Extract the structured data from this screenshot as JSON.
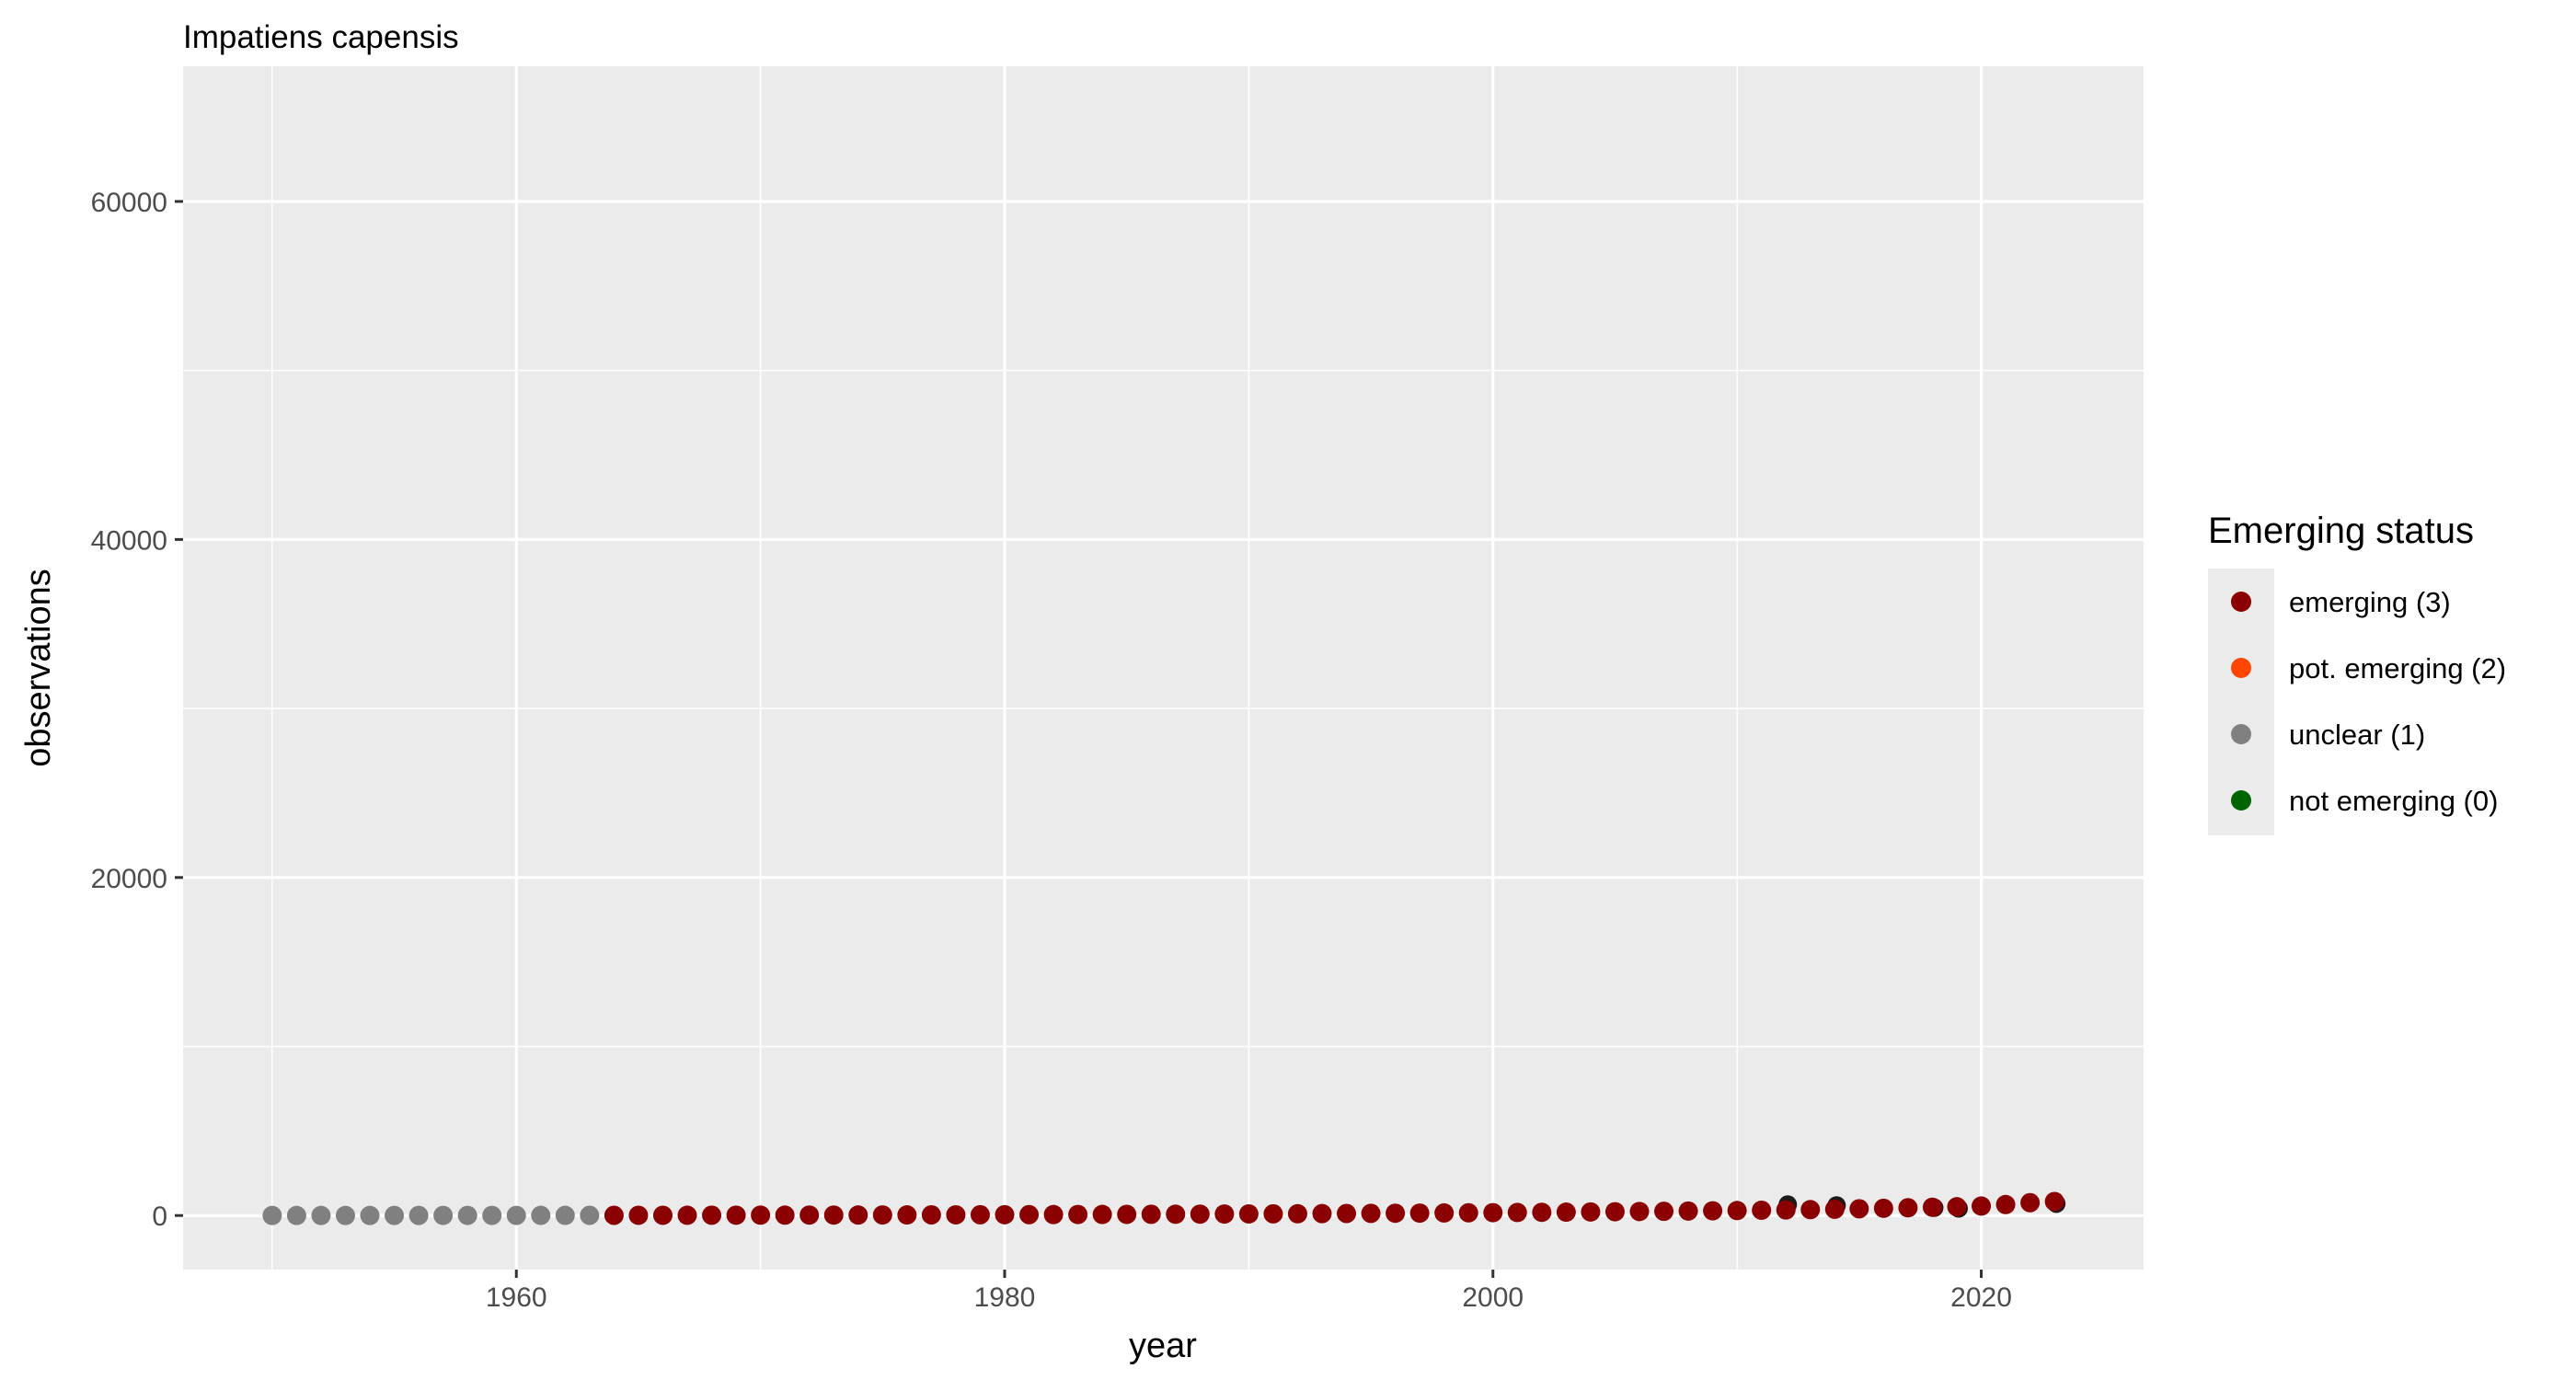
{
  "chart_data": {
    "type": "scatter",
    "title": "Impatiens capensis",
    "xlabel": "year",
    "ylabel": "observations",
    "xlim": [
      1946.35,
      2026.65
    ],
    "ylim": [
      -3200,
      68000
    ],
    "x_ticks": [
      1960,
      1980,
      2000,
      2020
    ],
    "y_ticks": [
      0,
      20000,
      40000,
      60000
    ],
    "grid": true,
    "legend": {
      "title": "Emerging status",
      "placement": "right",
      "entries": [
        {
          "label": "emerging (3)",
          "color": "#8B0000"
        },
        {
          "label": "pot. emerging (2)",
          "color": "#FF4500"
        },
        {
          "label": "unclear (1)",
          "color": "#808080"
        },
        {
          "label": "not emerging (0)",
          "color": "#006400"
        }
      ]
    },
    "series": [
      {
        "status": "unclear (1)",
        "color": "#808080",
        "x": [
          1950,
          1951,
          1952,
          1953,
          1954,
          1955,
          1956,
          1957,
          1958,
          1959,
          1960,
          1961,
          1962,
          1963
        ],
        "y": [
          2,
          3,
          3,
          4,
          4,
          5,
          5,
          6,
          6,
          7,
          8,
          9,
          10,
          11
        ]
      },
      {
        "status": "emerging (3)",
        "color": "#8B0000",
        "x": [
          1964,
          1965,
          1966,
          1967,
          1968,
          1969,
          1970,
          1971,
          1972,
          1973,
          1974,
          1975,
          1976,
          1977,
          1978,
          1979,
          1980,
          1981,
          1982,
          1983,
          1984,
          1985,
          1986,
          1987,
          1988,
          1989,
          1990,
          1991,
          1992,
          1993,
          1994,
          1995,
          1996,
          1997,
          1998,
          1999,
          2000,
          2001,
          2002,
          2003,
          2004,
          2005,
          2006,
          2007,
          2008,
          2009,
          2010,
          2011,
          2012,
          2013,
          2014,
          2015,
          2016,
          2017,
          2018,
          2019,
          2020,
          2021,
          2022,
          2023
        ],
        "y": [
          12,
          14,
          15,
          17,
          18,
          20,
          22,
          24,
          26,
          28,
          30,
          33,
          36,
          39,
          42,
          45,
          48,
          52,
          56,
          60,
          64,
          68,
          73,
          78,
          83,
          88,
          94,
          100,
          106,
          113,
          120,
          127,
          135,
          143,
          152,
          161,
          170,
          180,
          190,
          201,
          212,
          224,
          237,
          250,
          265,
          280,
          296,
          313,
          330,
          350,
          370,
          400,
          430,
          460,
          490,
          520,
          560,
          650,
          760,
          830
        ]
      }
    ],
    "overlay_points": {
      "color": "#1a1a1a",
      "x": [
        2012,
        2014,
        2018,
        2019,
        2023
      ],
      "y": [
        650,
        600,
        460,
        420,
        700
      ]
    }
  }
}
